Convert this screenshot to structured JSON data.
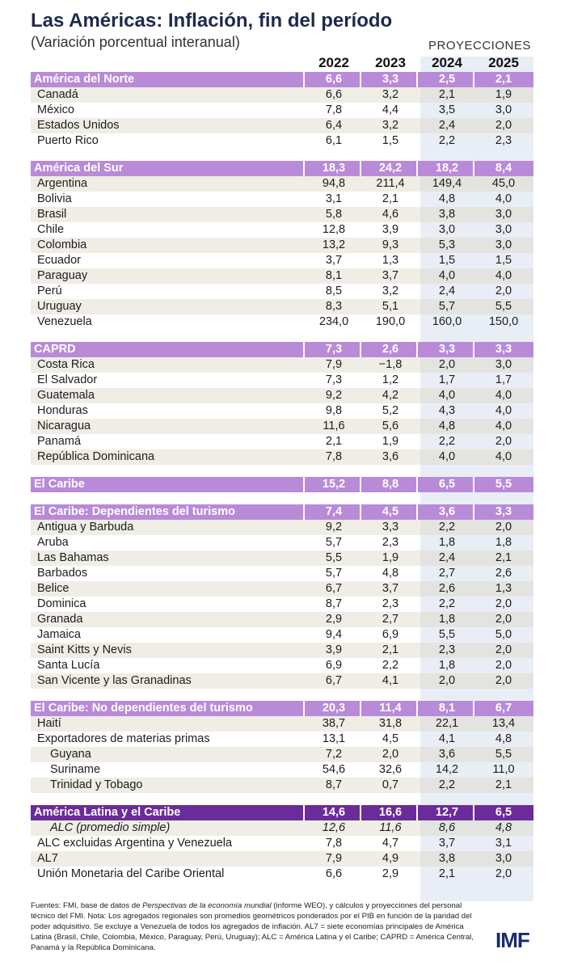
{
  "header": {
    "title": "Las Américas: Inflación, fin del período",
    "subtitle": "(Variación porcentual interanual)",
    "projections_label": "PROYECCIONES",
    "years": [
      "2022",
      "2023",
      "2024",
      "2025"
    ]
  },
  "rows": [
    {
      "t": "group",
      "label": "América del Norte",
      "v": [
        "6,6",
        "3,3",
        "2,5",
        "2,1"
      ]
    },
    {
      "t": "row",
      "label": "Canadá",
      "v": [
        "6,6",
        "3,2",
        "2,1",
        "1,9"
      ]
    },
    {
      "t": "row",
      "label": "México",
      "v": [
        "7,8",
        "4,4",
        "3,5",
        "3,0"
      ]
    },
    {
      "t": "row",
      "label": "Estados Unidos",
      "v": [
        "6,4",
        "3,2",
        "2,4",
        "2,0"
      ]
    },
    {
      "t": "row",
      "label": "Puerto Rico",
      "v": [
        "6,1",
        "1,5",
        "2,2",
        "2,3"
      ]
    },
    {
      "t": "group",
      "label": "América del Sur",
      "v": [
        "18,3",
        "24,2",
        "18,2",
        "8,4"
      ]
    },
    {
      "t": "row",
      "label": "Argentina",
      "v": [
        "94,8",
        "211,4",
        "149,4",
        "45,0"
      ]
    },
    {
      "t": "row",
      "label": "Bolivia",
      "v": [
        "3,1",
        "2,1",
        "4,8",
        "4,0"
      ]
    },
    {
      "t": "row",
      "label": "Brasil",
      "v": [
        "5,8",
        "4,6",
        "3,8",
        "3,0"
      ]
    },
    {
      "t": "row",
      "label": "Chile",
      "v": [
        "12,8",
        "3,9",
        "3,0",
        "3,0"
      ]
    },
    {
      "t": "row",
      "label": "Colombia",
      "v": [
        "13,2",
        "9,3",
        "5,3",
        "3,0"
      ]
    },
    {
      "t": "row",
      "label": "Ecuador",
      "v": [
        "3,7",
        "1,3",
        "1,5",
        "1,5"
      ]
    },
    {
      "t": "row",
      "label": "Paraguay",
      "v": [
        "8,1",
        "3,7",
        "4,0",
        "4,0"
      ]
    },
    {
      "t": "row",
      "label": "Perú",
      "v": [
        "8,5",
        "3,2",
        "2,4",
        "2,0"
      ]
    },
    {
      "t": "row",
      "label": "Uruguay",
      "v": [
        "8,3",
        "5,1",
        "5,7",
        "5,5"
      ]
    },
    {
      "t": "row",
      "label": "Venezuela",
      "v": [
        "234,0",
        "190,0",
        "160,0",
        "150,0"
      ]
    },
    {
      "t": "group",
      "label": "CAPRD",
      "v": [
        "7,3",
        "2,6",
        "3,3",
        "3,3"
      ]
    },
    {
      "t": "row",
      "label": "Costa Rica",
      "v": [
        "7,9",
        "−1,8",
        "2,0",
        "3,0"
      ]
    },
    {
      "t": "row",
      "label": "El Salvador",
      "v": [
        "7,3",
        "1,2",
        "1,7",
        "1,7"
      ]
    },
    {
      "t": "row",
      "label": "Guatemala",
      "v": [
        "9,2",
        "4,2",
        "4,0",
        "4,0"
      ]
    },
    {
      "t": "row",
      "label": "Honduras",
      "v": [
        "9,8",
        "5,2",
        "4,3",
        "4,0"
      ]
    },
    {
      "t": "row",
      "label": "Nicaragua",
      "v": [
        "11,6",
        "5,6",
        "4,8",
        "4,0"
      ]
    },
    {
      "t": "row",
      "label": "Panamá",
      "v": [
        "2,1",
        "1,9",
        "2,2",
        "2,0"
      ]
    },
    {
      "t": "row",
      "label": "República Dominicana",
      "v": [
        "7,8",
        "3,6",
        "4,0",
        "4,0"
      ]
    },
    {
      "t": "group",
      "label": "El Caribe",
      "v": [
        "15,2",
        "8,8",
        "6,5",
        "5,5"
      ]
    },
    {
      "t": "group",
      "label": "El Caribe: Dependientes del turismo",
      "v": [
        "7,4",
        "4,5",
        "3,6",
        "3,3"
      ]
    },
    {
      "t": "row",
      "label": "Antigua y Barbuda",
      "v": [
        "9,2",
        "3,3",
        "2,2",
        "2,0"
      ]
    },
    {
      "t": "row",
      "label": "Aruba",
      "v": [
        "5,7",
        "2,3",
        "1,8",
        "1,8"
      ]
    },
    {
      "t": "row",
      "label": "Las Bahamas",
      "v": [
        "5,5",
        "1,9",
        "2,4",
        "2,1"
      ]
    },
    {
      "t": "row",
      "label": "Barbados",
      "v": [
        "5,7",
        "4,8",
        "2,7",
        "2,6"
      ]
    },
    {
      "t": "row",
      "label": "Belice",
      "v": [
        "6,7",
        "3,7",
        "2,6",
        "1,3"
      ]
    },
    {
      "t": "row",
      "label": "Dominica",
      "v": [
        "8,7",
        "2,3",
        "2,2",
        "2,0"
      ]
    },
    {
      "t": "row",
      "label": "Granada",
      "v": [
        "2,9",
        "2,7",
        "1,8",
        "2,0"
      ]
    },
    {
      "t": "row",
      "label": "Jamaica",
      "v": [
        "9,4",
        "6,9",
        "5,5",
        "5,0"
      ]
    },
    {
      "t": "row",
      "label": "Saint Kitts y Nevis",
      "v": [
        "3,9",
        "2,1",
        "2,3",
        "2,0"
      ]
    },
    {
      "t": "row",
      "label": "Santa Lucía",
      "v": [
        "6,9",
        "2,2",
        "1,8",
        "2,0"
      ]
    },
    {
      "t": "row",
      "label": "San Vicente y las Granadinas",
      "v": [
        "6,7",
        "4,1",
        "2,0",
        "2,0"
      ]
    },
    {
      "t": "group",
      "label": "El Caribe: No dependientes del turismo",
      "v": [
        "20,3",
        "11,4",
        "8,1",
        "6,7"
      ]
    },
    {
      "t": "row",
      "label": "Haití",
      "v": [
        "38,7",
        "31,8",
        "22,1",
        "13,4"
      ]
    },
    {
      "t": "row",
      "label": "Exportadores de materias primas",
      "v": [
        "13,1",
        "4,5",
        "4,1",
        "4,8"
      ]
    },
    {
      "t": "row",
      "ind": 1,
      "label": "Guyana",
      "v": [
        "7,2",
        "2,0",
        "3,6",
        "5,5"
      ]
    },
    {
      "t": "row",
      "ind": 1,
      "label": "Suriname",
      "v": [
        "54,6",
        "32,6",
        "14,2",
        "11,0"
      ]
    },
    {
      "t": "row",
      "ind": 1,
      "label": "Trinidad y Tobago",
      "v": [
        "8,7",
        "0,7",
        "2,2",
        "2,1"
      ]
    },
    {
      "t": "total",
      "label": "América Latina y el Caribe",
      "v": [
        "14,6",
        "16,6",
        "12,7",
        "6,5"
      ]
    },
    {
      "t": "row",
      "ind": 1,
      "ital": true,
      "label": "ALC (promedio simple)",
      "v": [
        "12,6",
        "11,6",
        "8,6",
        "4,8"
      ]
    },
    {
      "t": "row",
      "label": "ALC excluidas Argentina y Venezuela",
      "v": [
        "7,8",
        "4,7",
        "3,7",
        "3,1"
      ]
    },
    {
      "t": "row",
      "label": "AL7",
      "v": [
        "7,9",
        "4,9",
        "3,8",
        "3,0"
      ]
    },
    {
      "t": "row",
      "label": "Unión Monetaria del Caribe Oriental",
      "v": [
        "6,6",
        "2,9",
        "2,1",
        "2,0"
      ]
    }
  ],
  "footnote": {
    "prefix": "Fuentes: FMI, base de datos de ",
    "italic": "Perspectivas de la economía mundial",
    "rest": " (informe WEO), y cálculos y proyecciones del personal técnico del FMI. Nota: Los agregados regionales son promedios geométricos ponderados por el PIB en función de la paridad del poder adquisitivo. Se excluye a Venezuela de todos los agregados de inflación. AL7 = siete economías principales de América Latina (Brasil, Chile, Colombia, México, Paraguay, Perú, Uruguay); ALC = América Latina y el Caribe; CAPRD = América Central, Panamá y la República Dominicana."
  },
  "logo": "IMF"
}
